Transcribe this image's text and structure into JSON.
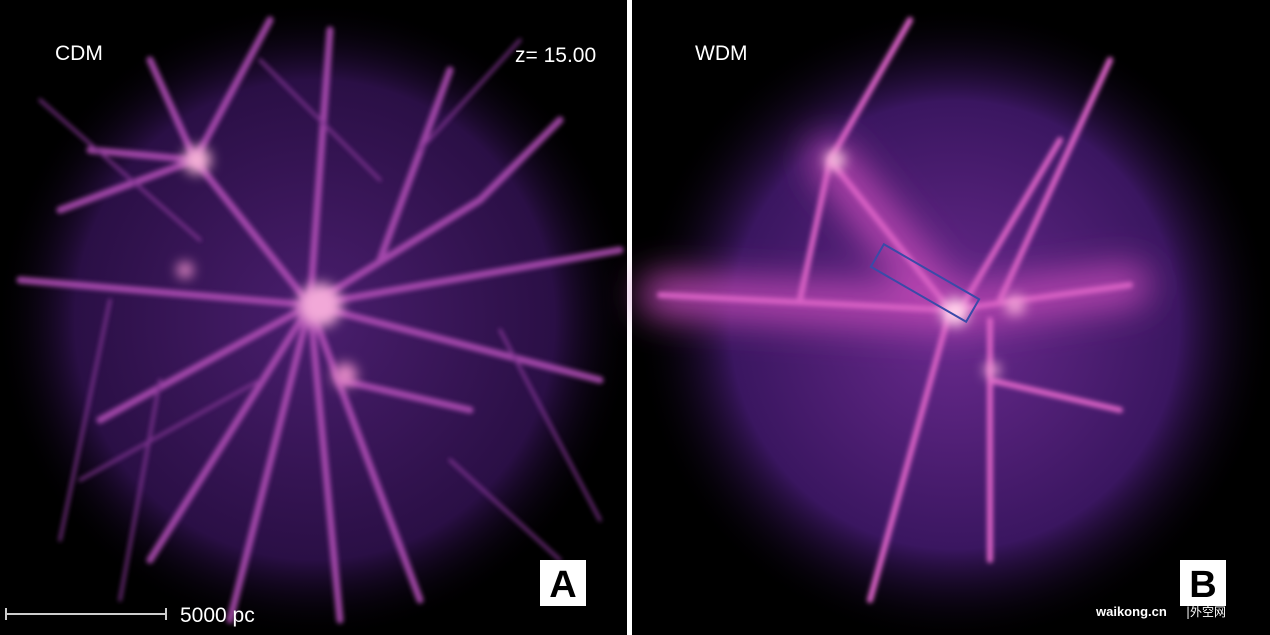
{
  "panels": [
    {
      "label": "CDM",
      "redshift": "z= 15.00",
      "scale_bar": "5000 pc",
      "letter": "A"
    },
    {
      "label": "WDM",
      "letter": "B"
    }
  ],
  "watermark": {
    "site": "waikong.cn",
    "name": "|外空网"
  }
}
